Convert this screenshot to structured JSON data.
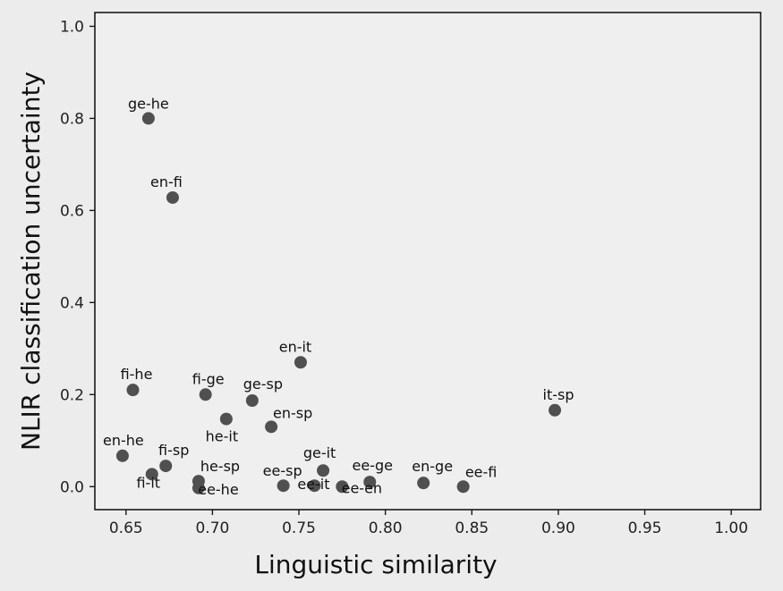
{
  "chart_data": {
    "type": "scatter",
    "title": "",
    "xlabel": "Linguistic similarity",
    "ylabel": "NLIR classification uncertainty",
    "xlim": [
      0.632,
      1.017
    ],
    "ylim": [
      -0.05,
      1.03
    ],
    "xticks": [
      0.65,
      0.7,
      0.75,
      0.8,
      0.85,
      0.9,
      0.95,
      1.0
    ],
    "xtick_labels": [
      "0.65",
      "0.70",
      "0.75",
      "0.80",
      "0.85",
      "0.90",
      "0.95",
      "1.00"
    ],
    "yticks": [
      0.0,
      0.2,
      0.4,
      0.6,
      0.8,
      1.0
    ],
    "ytick_labels": [
      "0.0",
      "0.2",
      "0.4",
      "0.6",
      "0.8",
      "1.0"
    ],
    "grid": false,
    "marker_color": "#505050",
    "points": [
      {
        "label": "ge-he",
        "x": 0.663,
        "y": 0.8
      },
      {
        "label": "en-fi",
        "x": 0.677,
        "y": 0.628
      },
      {
        "label": "en-it",
        "x": 0.751,
        "y": 0.27
      },
      {
        "label": "fi-he",
        "x": 0.654,
        "y": 0.21
      },
      {
        "label": "fi-ge",
        "x": 0.696,
        "y": 0.2
      },
      {
        "label": "ge-sp",
        "x": 0.723,
        "y": 0.187
      },
      {
        "label": "he-it",
        "x": 0.708,
        "y": 0.147
      },
      {
        "label": "en-sp",
        "x": 0.734,
        "y": 0.13
      },
      {
        "label": "it-sp",
        "x": 0.898,
        "y": 0.166
      },
      {
        "label": "en-he",
        "x": 0.648,
        "y": 0.067
      },
      {
        "label": "fi-sp",
        "x": 0.673,
        "y": 0.045
      },
      {
        "label": "fi-it",
        "x": 0.665,
        "y": 0.027
      },
      {
        "label": "he-sp",
        "x": 0.692,
        "y": 0.012
      },
      {
        "label": "ee-he",
        "x": 0.692,
        "y": -0.003
      },
      {
        "label": "ee-sp",
        "x": 0.741,
        "y": 0.002
      },
      {
        "label": "ge-it",
        "x": 0.764,
        "y": 0.035
      },
      {
        "label": "ee-it",
        "x": 0.759,
        "y": 0.002
      },
      {
        "label": "ee-ge",
        "x": 0.791,
        "y": 0.01
      },
      {
        "label": "ee-en",
        "x": 0.775,
        "y": 0.0
      },
      {
        "label": "en-ge",
        "x": 0.822,
        "y": 0.008
      },
      {
        "label": "ee-fi",
        "x": 0.845,
        "y": 0.0
      }
    ]
  }
}
